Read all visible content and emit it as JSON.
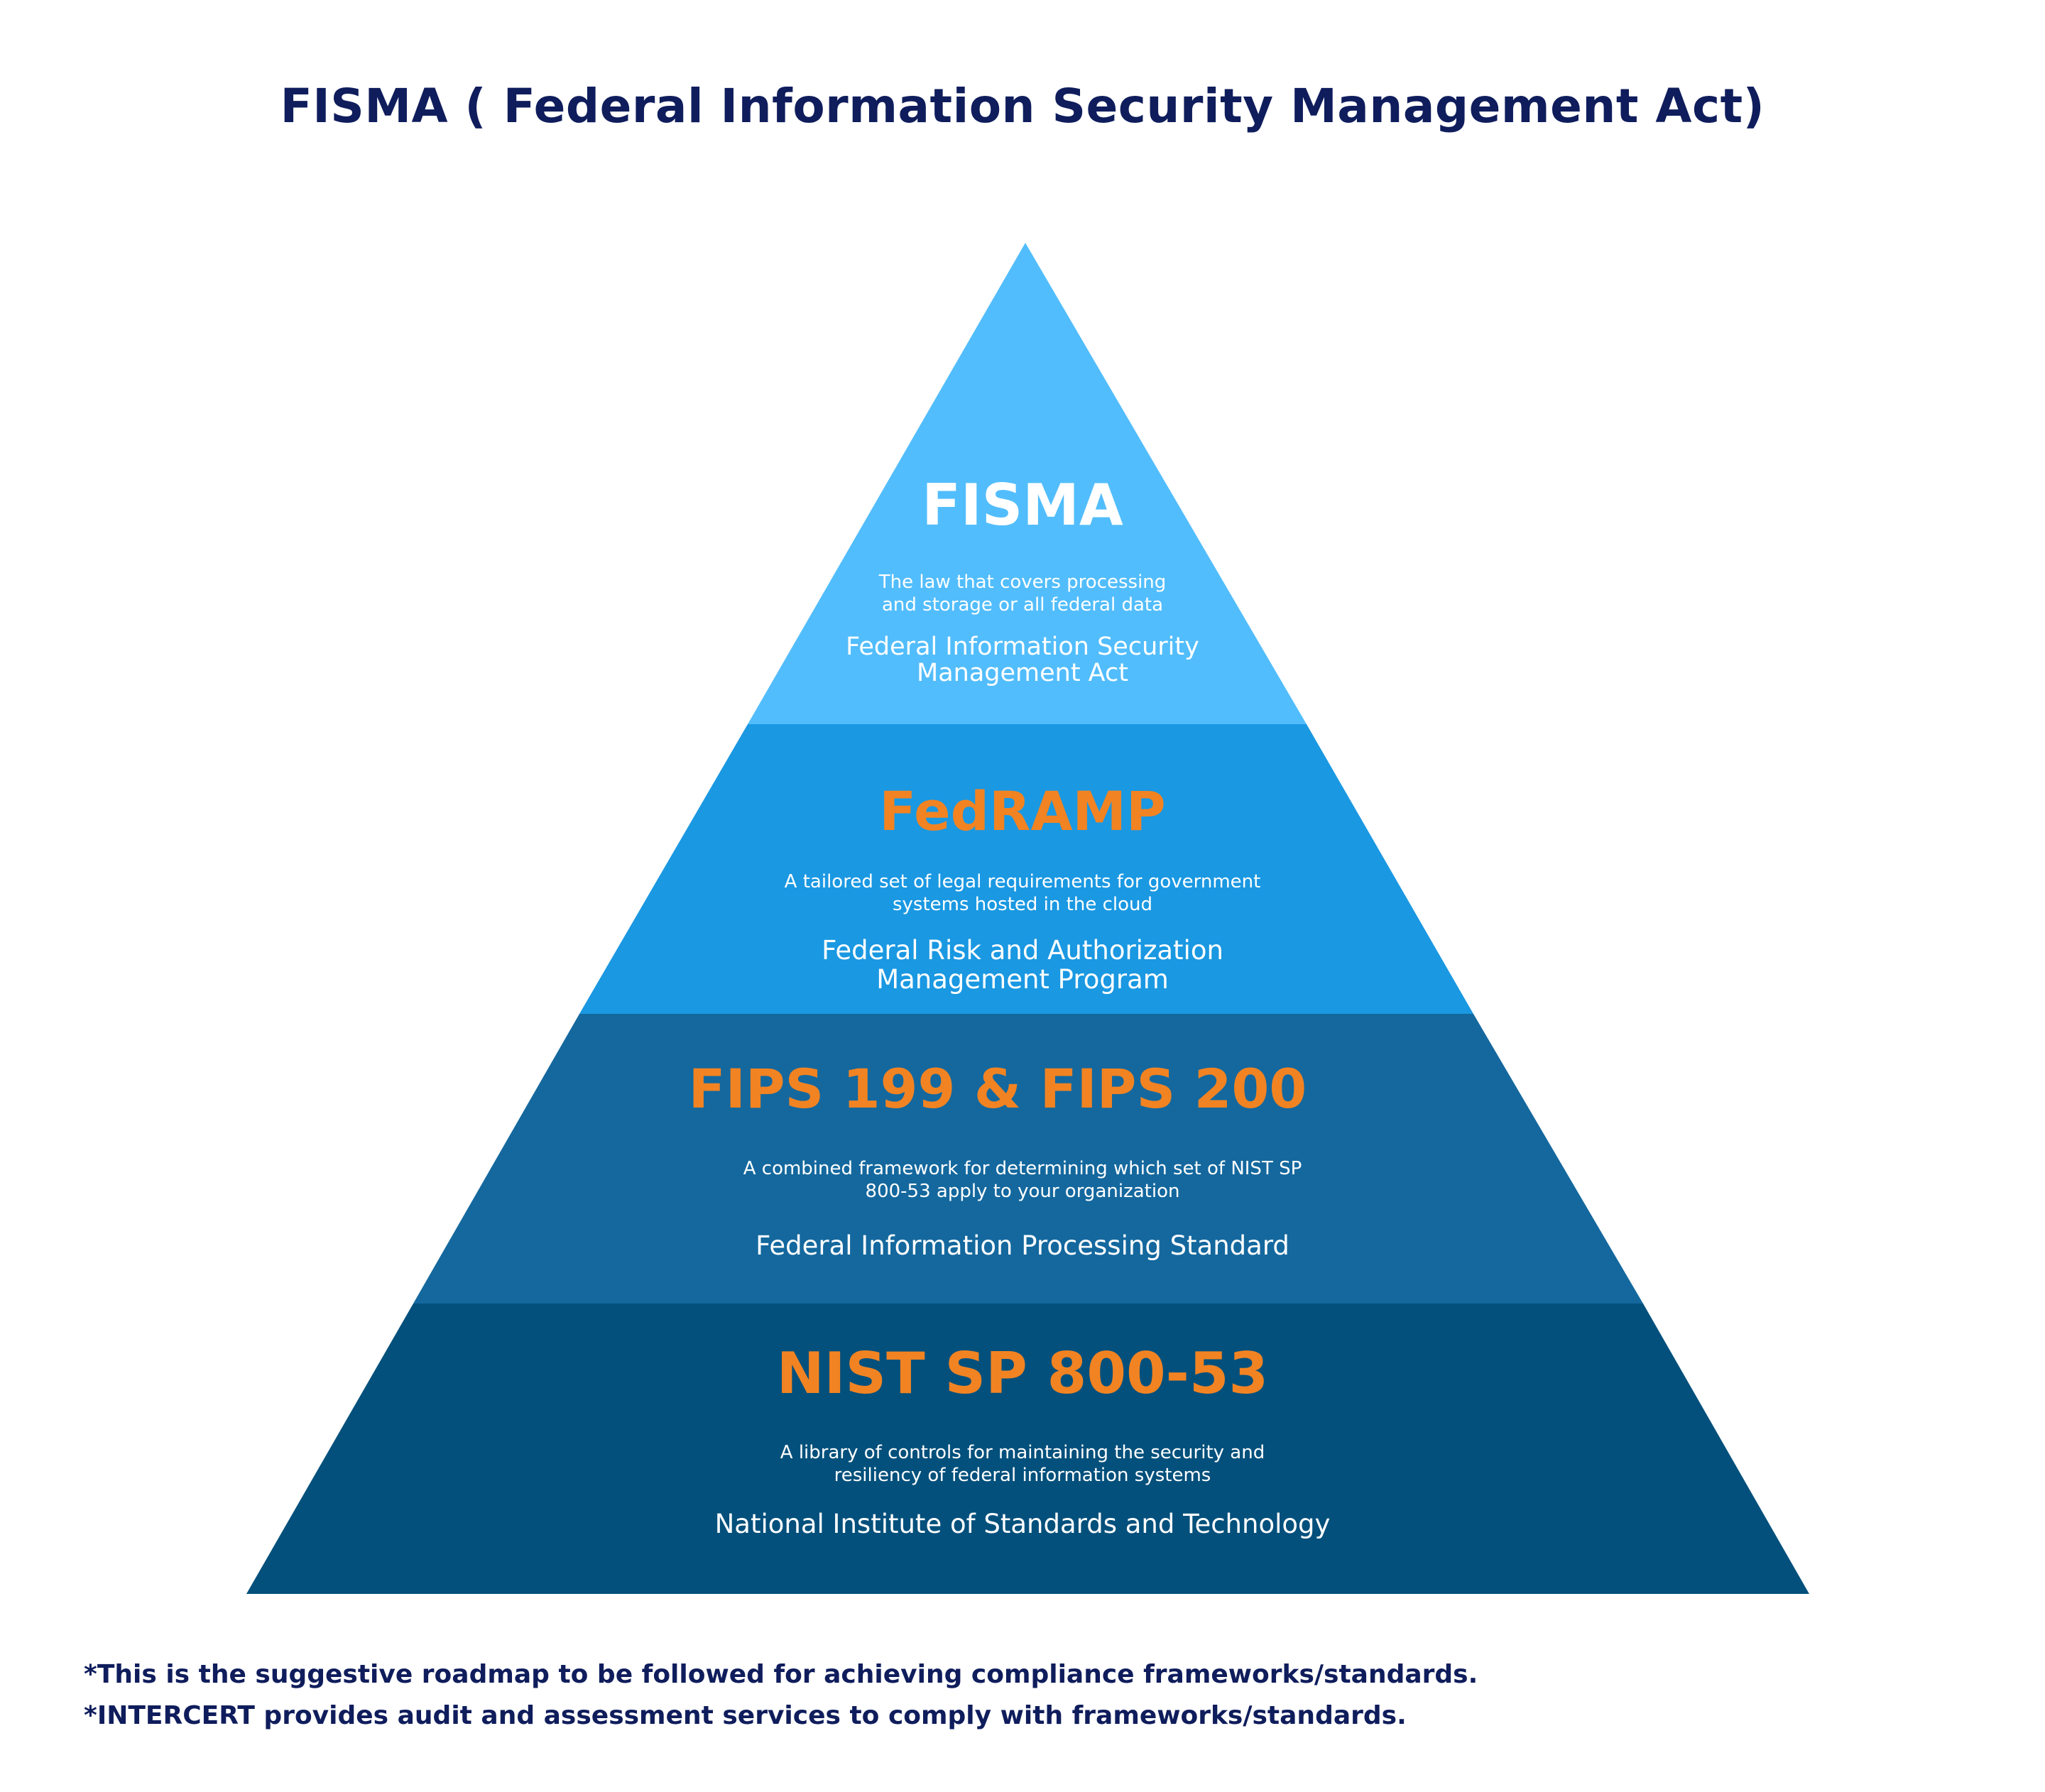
{
  "title": "FISMA ( Federal Information Security Management Act)",
  "colors": {
    "title_text": "#0f1d5c",
    "tier1_fill": "#52bdfc",
    "tier2_fill": "#1a98e2",
    "tier3_fill": "#14689e",
    "tier4_fill": "#03507c",
    "highlight_text": "#f28322",
    "body_text": "#ffffff"
  },
  "tiers": [
    {
      "title": "FISMA",
      "description_lines": [
        "The law that covers processing",
        "and storage or all federal data"
      ],
      "full_name_lines": [
        "Federal Information Security",
        "Management Act"
      ]
    },
    {
      "title": "FedRAMP",
      "description_lines": [
        "A tailored set of legal requirements for government",
        "systems hosted in the cloud"
      ],
      "full_name_lines": [
        "Federal Risk and Authorization",
        "Management Program"
      ]
    },
    {
      "title": "FIPS 199 & FIPS 200",
      "description_lines": [
        "A combined framework for determining which set of NIST SP",
        "800-53 apply to your organization"
      ],
      "full_name_lines": [
        "Federal Information Processing Standard"
      ]
    },
    {
      "title": "NIST SP 800-53",
      "description_lines": [
        "A library of controls for maintaining the security and",
        "resiliency of federal information systems"
      ],
      "full_name_lines": [
        "National Institute of Standards and Technology"
      ]
    }
  ],
  "footnotes": [
    "*This is the suggestive roadmap to be followed for achieving compliance frameworks/standards.",
    "*INTERCERT provides audit and assessment services to comply with frameworks/standards."
  ]
}
